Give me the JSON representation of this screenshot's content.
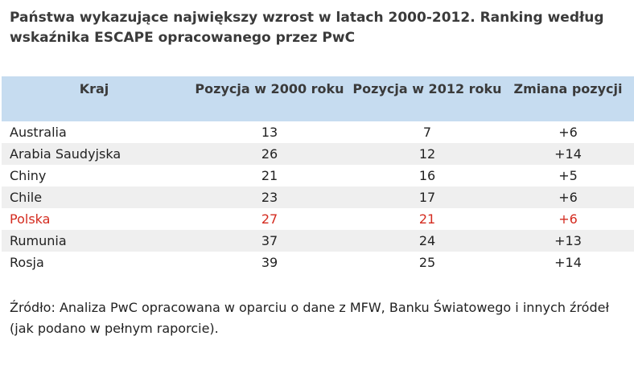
{
  "title": "Państwa wykazujące największy wzrost w latach 2000-2012. Ranking według wskaźnika ESCAPE opracowanego przez PwC",
  "table": {
    "headers": [
      "Kraj",
      "Pozycja w 2000 roku",
      "Pozycja w 2012 roku",
      "Zmiana pozycji"
    ],
    "rows": [
      [
        "Australia",
        "13",
        "7",
        "+6"
      ],
      [
        "Arabia Saudyjska",
        "26",
        "12",
        "+14"
      ],
      [
        "Chiny",
        "21",
        "16",
        "+5"
      ],
      [
        "Chile",
        "23",
        "17",
        "+6"
      ],
      [
        "Polska",
        "27",
        "21",
        "+6"
      ],
      [
        "Rumunia",
        "37",
        "24",
        "+13"
      ],
      [
        "Rosja",
        "39",
        "25",
        "+14"
      ]
    ],
    "highlight_color": "#d42b1f",
    "header_color": "#c6dcf0"
  },
  "source": "Źródło: Analiza PwC opracowana w oparciu o dane z MFW, Banku Światowego i innych źródeł (jak podano w pełnym raporcie)."
}
